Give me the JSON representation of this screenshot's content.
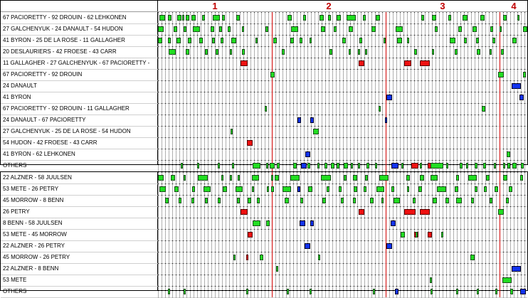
{
  "periods": [
    "1",
    "2",
    "3",
    "4"
  ],
  "colors": {
    "green": "#22dd22",
    "red": "#ee1111",
    "blue": "#1133ee"
  },
  "forwards": [
    {
      "label": "67 PACIORETTY - 92 DROUIN - 62 LEHKONEN",
      "shifts": [
        [
          2,
          8,
          "green"
        ],
        [
          14,
          5,
          "green"
        ],
        [
          27,
          6,
          "green"
        ],
        [
          34,
          3,
          "green"
        ],
        [
          39,
          5,
          "green"
        ],
        [
          47,
          6,
          "green"
        ],
        [
          62,
          4,
          "green"
        ],
        [
          77,
          10,
          "green"
        ],
        [
          90,
          4,
          "green"
        ],
        [
          110,
          5,
          "green"
        ],
        [
          182,
          6,
          "green"
        ],
        [
          204,
          4,
          "green"
        ],
        [
          227,
          6,
          "green"
        ],
        [
          239,
          4,
          "green"
        ],
        [
          251,
          6,
          "green"
        ],
        [
          265,
          13,
          "green"
        ],
        [
          288,
          4,
          "green"
        ],
        [
          306,
          6,
          "green"
        ],
        [
          370,
          4,
          "green"
        ],
        [
          385,
          6,
          "green"
        ],
        [
          408,
          4,
          "green"
        ],
        [
          428,
          7,
          "green"
        ],
        [
          453,
          6,
          "green"
        ],
        [
          485,
          5,
          "green"
        ],
        [
          505,
          3,
          "green"
        ]
      ]
    },
    {
      "label": "27 GALCHENYUK - 24 DANAULT - 54 HUDON",
      "shifts": [
        [
          -2,
          8,
          "green"
        ],
        [
          22,
          5,
          "green"
        ],
        [
          36,
          4,
          "green"
        ],
        [
          49,
          10,
          "green"
        ],
        [
          74,
          5,
          "green"
        ],
        [
          86,
          4,
          "green"
        ],
        [
          98,
          4,
          "green"
        ],
        [
          118,
          3,
          "green"
        ],
        [
          151,
          4,
          "green"
        ],
        [
          187,
          10,
          "green"
        ],
        [
          229,
          6,
          "green"
        ],
        [
          247,
          4,
          "green"
        ],
        [
          268,
          6,
          "green"
        ],
        [
          300,
          6,
          "green"
        ],
        [
          334,
          10,
          "green"
        ],
        [
          389,
          4,
          "green"
        ],
        [
          422,
          5,
          "green"
        ],
        [
          442,
          6,
          "green"
        ],
        [
          467,
          4,
          "green"
        ],
        [
          480,
          3,
          "green"
        ],
        [
          513,
          6,
          "green"
        ]
      ]
    },
    {
      "label": "41 BYRON - 25 DE LA ROSE - 11 GALLAGHER",
      "shifts": [
        [
          0,
          6,
          "green"
        ],
        [
          14,
          4,
          "green"
        ],
        [
          26,
          6,
          "green"
        ],
        [
          42,
          5,
          "green"
        ],
        [
          58,
          5,
          "green"
        ],
        [
          76,
          4,
          "green"
        ],
        [
          88,
          4,
          "green"
        ],
        [
          103,
          7,
          "green"
        ],
        [
          137,
          3,
          "green"
        ],
        [
          162,
          5,
          "green"
        ],
        [
          186,
          5,
          "green"
        ],
        [
          199,
          4,
          "green"
        ],
        [
          213,
          3,
          "green"
        ],
        [
          259,
          5,
          "green"
        ],
        [
          283,
          4,
          "green"
        ],
        [
          317,
          3,
          "green"
        ],
        [
          336,
          7,
          "green"
        ],
        [
          350,
          3,
          "green"
        ],
        [
          410,
          8,
          "green"
        ],
        [
          430,
          4,
          "green"
        ],
        [
          447,
          4,
          "green"
        ],
        [
          470,
          4,
          "green"
        ],
        [
          498,
          6,
          "green"
        ]
      ]
    },
    {
      "label": "20 DESLAURIERS - 42 FROESE - 43 CARR",
      "shifts": [
        [
          15,
          10,
          "green"
        ],
        [
          39,
          5,
          "green"
        ],
        [
          66,
          4,
          "green"
        ],
        [
          81,
          4,
          "green"
        ],
        [
          101,
          3,
          "green"
        ],
        [
          118,
          4,
          "green"
        ],
        [
          174,
          4,
          "green"
        ],
        [
          241,
          4,
          "green"
        ],
        [
          268,
          3,
          "green"
        ],
        [
          281,
          3,
          "green"
        ],
        [
          291,
          3,
          "green"
        ],
        [
          360,
          4,
          "green"
        ],
        [
          385,
          3,
          "green"
        ],
        [
          417,
          4,
          "green"
        ],
        [
          448,
          5,
          "green"
        ],
        [
          466,
          3,
          "green"
        ],
        [
          482,
          4,
          "green"
        ]
      ]
    },
    {
      "label": "11 GALLAGHER - 27 GALCHENYUK - 67 PACIORETTY -",
      "shifts": [
        [
          116,
          10,
          "red"
        ],
        [
          282,
          8,
          "red"
        ],
        [
          346,
          10,
          "red"
        ],
        [
          368,
          14,
          "red"
        ]
      ]
    },
    {
      "label": "67 PACIORETTY - 92 DROUIN",
      "shifts": [
        [
          158,
          6,
          "green"
        ],
        [
          478,
          8,
          "green"
        ],
        [
          513,
          4,
          "green"
        ]
      ]
    },
    {
      "label": "24 DANAULT",
      "shifts": [
        [
          497,
          13,
          "blue"
        ]
      ]
    },
    {
      "label": "41 BYRON",
      "shifts": [
        [
          321,
          8,
          "blue"
        ],
        [
          508,
          6,
          "blue"
        ]
      ]
    },
    {
      "label": "67 PACIORETTY - 92 DROUIN - 11 GALLAGHER",
      "shifts": [
        [
          150,
          3,
          "green"
        ],
        [
          310,
          3,
          "green"
        ],
        [
          455,
          5,
          "green"
        ]
      ]
    },
    {
      "label": "24 DANAULT - 67 PACIORETTY",
      "shifts": [
        [
          196,
          5,
          "blue"
        ],
        [
          214,
          5,
          "blue"
        ],
        [
          319,
          3,
          "blue"
        ]
      ]
    },
    {
      "label": "27 GALCHENYUK - 25 DE LA ROSE - 54 HUDON",
      "shifts": [
        [
          102,
          3,
          "green"
        ],
        [
          218,
          8,
          "green"
        ]
      ]
    },
    {
      "label": "54 HUDON - 42 FROESE - 43 CARR",
      "shifts": [
        [
          125,
          8,
          "red"
        ]
      ]
    },
    {
      "label": "41 BYRON - 62 LEHKONEN",
      "shifts": [
        [
          207,
          7,
          "blue"
        ],
        [
          490,
          5,
          "green"
        ]
      ]
    },
    {
      "label": "OTHERS",
      "shifts": [
        [
          32,
          3,
          "green"
        ],
        [
          55,
          3,
          "green"
        ],
        [
          84,
          3,
          "green"
        ],
        [
          104,
          3,
          "green"
        ],
        [
          133,
          11,
          "green"
        ],
        [
          152,
          3,
          "green"
        ],
        [
          157,
          7,
          "green"
        ],
        [
          167,
          4,
          "green"
        ],
        [
          190,
          5,
          "green"
        ],
        [
          201,
          8,
          "blue"
        ],
        [
          210,
          4,
          "green"
        ],
        [
          224,
          3,
          "green"
        ],
        [
          234,
          4,
          "green"
        ],
        [
          243,
          5,
          "green"
        ],
        [
          251,
          4,
          "green"
        ],
        [
          261,
          6,
          "green"
        ],
        [
          271,
          3,
          "green"
        ],
        [
          281,
          3,
          "green"
        ],
        [
          293,
          4,
          "green"
        ],
        [
          305,
          3,
          "green"
        ],
        [
          328,
          10,
          "blue"
        ],
        [
          342,
          3,
          "green"
        ],
        [
          356,
          10,
          "red"
        ],
        [
          368,
          3,
          "green"
        ],
        [
          379,
          6,
          "red"
        ],
        [
          383,
          18,
          "green"
        ],
        [
          405,
          3,
          "green"
        ],
        [
          424,
          4,
          "green"
        ],
        [
          433,
          3,
          "green"
        ],
        [
          445,
          4,
          "green"
        ],
        [
          457,
          4,
          "green"
        ],
        [
          472,
          3,
          "green"
        ],
        [
          485,
          3,
          "green"
        ],
        [
          491,
          4,
          "green"
        ],
        [
          498,
          6,
          "green"
        ],
        [
          510,
          4,
          "green"
        ]
      ]
    }
  ],
  "defense": [
    {
      "label": "22 ALZNER - 58 JUULSEN",
      "shifts": [
        [
          -2,
          8,
          "green"
        ],
        [
          18,
          6,
          "green"
        ],
        [
          36,
          3,
          "green"
        ],
        [
          56,
          14,
          "green"
        ],
        [
          89,
          3,
          "green"
        ],
        [
          101,
          3,
          "green"
        ],
        [
          112,
          3,
          "green"
        ],
        [
          132,
          10,
          "green"
        ],
        [
          159,
          3,
          "green"
        ],
        [
          164,
          6,
          "green"
        ],
        [
          186,
          13,
          "green"
        ],
        [
          229,
          14,
          "green"
        ],
        [
          261,
          4,
          "green"
        ],
        [
          274,
          6,
          "green"
        ],
        [
          291,
          4,
          "green"
        ],
        [
          311,
          13,
          "green"
        ],
        [
          349,
          5,
          "green"
        ],
        [
          368,
          6,
          "green"
        ],
        [
          383,
          10,
          "green"
        ],
        [
          419,
          4,
          "green"
        ],
        [
          436,
          12,
          "green"
        ],
        [
          461,
          5,
          "green"
        ],
        [
          485,
          6,
          "green"
        ],
        [
          509,
          4,
          "green"
        ]
      ]
    },
    {
      "label": "53 METE - 26 PETRY",
      "shifts": [
        [
          2,
          9,
          "green"
        ],
        [
          23,
          6,
          "green"
        ],
        [
          48,
          4,
          "green"
        ],
        [
          64,
          10,
          "green"
        ],
        [
          91,
          6,
          "green"
        ],
        [
          109,
          10,
          "green"
        ],
        [
          132,
          3,
          "green"
        ],
        [
          153,
          3,
          "green"
        ],
        [
          159,
          4,
          "green"
        ],
        [
          175,
          12,
          "green"
        ],
        [
          196,
          4,
          "blue"
        ],
        [
          211,
          6,
          "green"
        ],
        [
          237,
          4,
          "green"
        ],
        [
          254,
          4,
          "green"
        ],
        [
          275,
          5,
          "green"
        ],
        [
          289,
          4,
          "green"
        ],
        [
          307,
          11,
          "green"
        ],
        [
          328,
          4,
          "green"
        ],
        [
          350,
          3,
          "green"
        ],
        [
          366,
          5,
          "green"
        ],
        [
          392,
          13,
          "green"
        ],
        [
          417,
          5,
          "green"
        ],
        [
          445,
          4,
          "green"
        ],
        [
          458,
          4,
          "green"
        ],
        [
          473,
          5,
          "green"
        ],
        [
          493,
          5,
          "green"
        ]
      ]
    },
    {
      "label": "45 MORROW - 8 BENN",
      "shifts": [
        [
          10,
          5,
          "green"
        ],
        [
          29,
          4,
          "green"
        ],
        [
          47,
          4,
          "green"
        ],
        [
          66,
          4,
          "green"
        ],
        [
          84,
          4,
          "green"
        ],
        [
          111,
          4,
          "green"
        ],
        [
          126,
          5,
          "green"
        ],
        [
          139,
          4,
          "green"
        ],
        [
          178,
          6,
          "green"
        ],
        [
          200,
          4,
          "green"
        ],
        [
          231,
          5,
          "green"
        ],
        [
          257,
          4,
          "green"
        ],
        [
          274,
          4,
          "green"
        ],
        [
          298,
          5,
          "green"
        ],
        [
          314,
          3,
          "green"
        ],
        [
          331,
          9,
          "green"
        ],
        [
          358,
          4,
          "green"
        ],
        [
          386,
          6,
          "green"
        ],
        [
          404,
          5,
          "green"
        ],
        [
          419,
          8,
          "green"
        ],
        [
          440,
          4,
          "green"
        ],
        [
          466,
          4,
          "green"
        ],
        [
          489,
          4,
          "green"
        ]
      ]
    },
    {
      "label": "26 PETRY",
      "shifts": [
        [
          116,
          10,
          "red"
        ],
        [
          282,
          8,
          "red"
        ],
        [
          346,
          16,
          "red"
        ],
        [
          368,
          14,
          "red"
        ],
        [
          478,
          8,
          "green"
        ]
      ]
    },
    {
      "label": "8 BENN - 58 JUULSEN",
      "shifts": [
        [
          133,
          11,
          "green"
        ],
        [
          152,
          5,
          "green"
        ],
        [
          199,
          8,
          "blue"
        ],
        [
          214,
          5,
          "blue"
        ],
        [
          327,
          7,
          "blue"
        ]
      ]
    },
    {
      "label": "53 METE - 45 MORROW",
      "shifts": [
        [
          126,
          7,
          "red"
        ],
        [
          341,
          6,
          "green"
        ],
        [
          360,
          6,
          "red"
        ],
        [
          362,
          3,
          "green"
        ],
        [
          379,
          6,
          "red"
        ],
        [
          398,
          3,
          "green"
        ]
      ]
    },
    {
      "label": "22 ALZNER - 26 PETRY",
      "shifts": [
        [
          206,
          8,
          "blue"
        ],
        [
          321,
          8,
          "blue"
        ]
      ]
    },
    {
      "label": "45 MORROW - 26 PETRY",
      "shifts": [
        [
          106,
          3,
          "green"
        ],
        [
          124,
          3,
          "red"
        ],
        [
          143,
          5,
          "green"
        ],
        [
          225,
          3,
          "green"
        ],
        [
          439,
          6,
          "green"
        ]
      ]
    },
    {
      "label": "22 ALZNER - 8 BENN",
      "shifts": [
        [
          166,
          3,
          "green"
        ],
        [
          497,
          13,
          "blue"
        ]
      ]
    },
    {
      "label": "53 METE",
      "shifts": [
        [
          382,
          3,
          "green"
        ],
        [
          484,
          13,
          "green"
        ]
      ]
    },
    {
      "label": "OTHERS",
      "shifts": [
        [
          14,
          3,
          "green"
        ],
        [
          36,
          3,
          "green"
        ],
        [
          124,
          3,
          "green"
        ],
        [
          181,
          3,
          "green"
        ],
        [
          213,
          3,
          "green"
        ],
        [
          302,
          3,
          "green"
        ],
        [
          333,
          5,
          "blue"
        ],
        [
          383,
          3,
          "green"
        ],
        [
          419,
          3,
          "green"
        ],
        [
          448,
          3,
          "green"
        ],
        [
          474,
          3,
          "green"
        ],
        [
          495,
          4,
          "green"
        ],
        [
          509,
          8,
          "blue"
        ]
      ]
    }
  ]
}
